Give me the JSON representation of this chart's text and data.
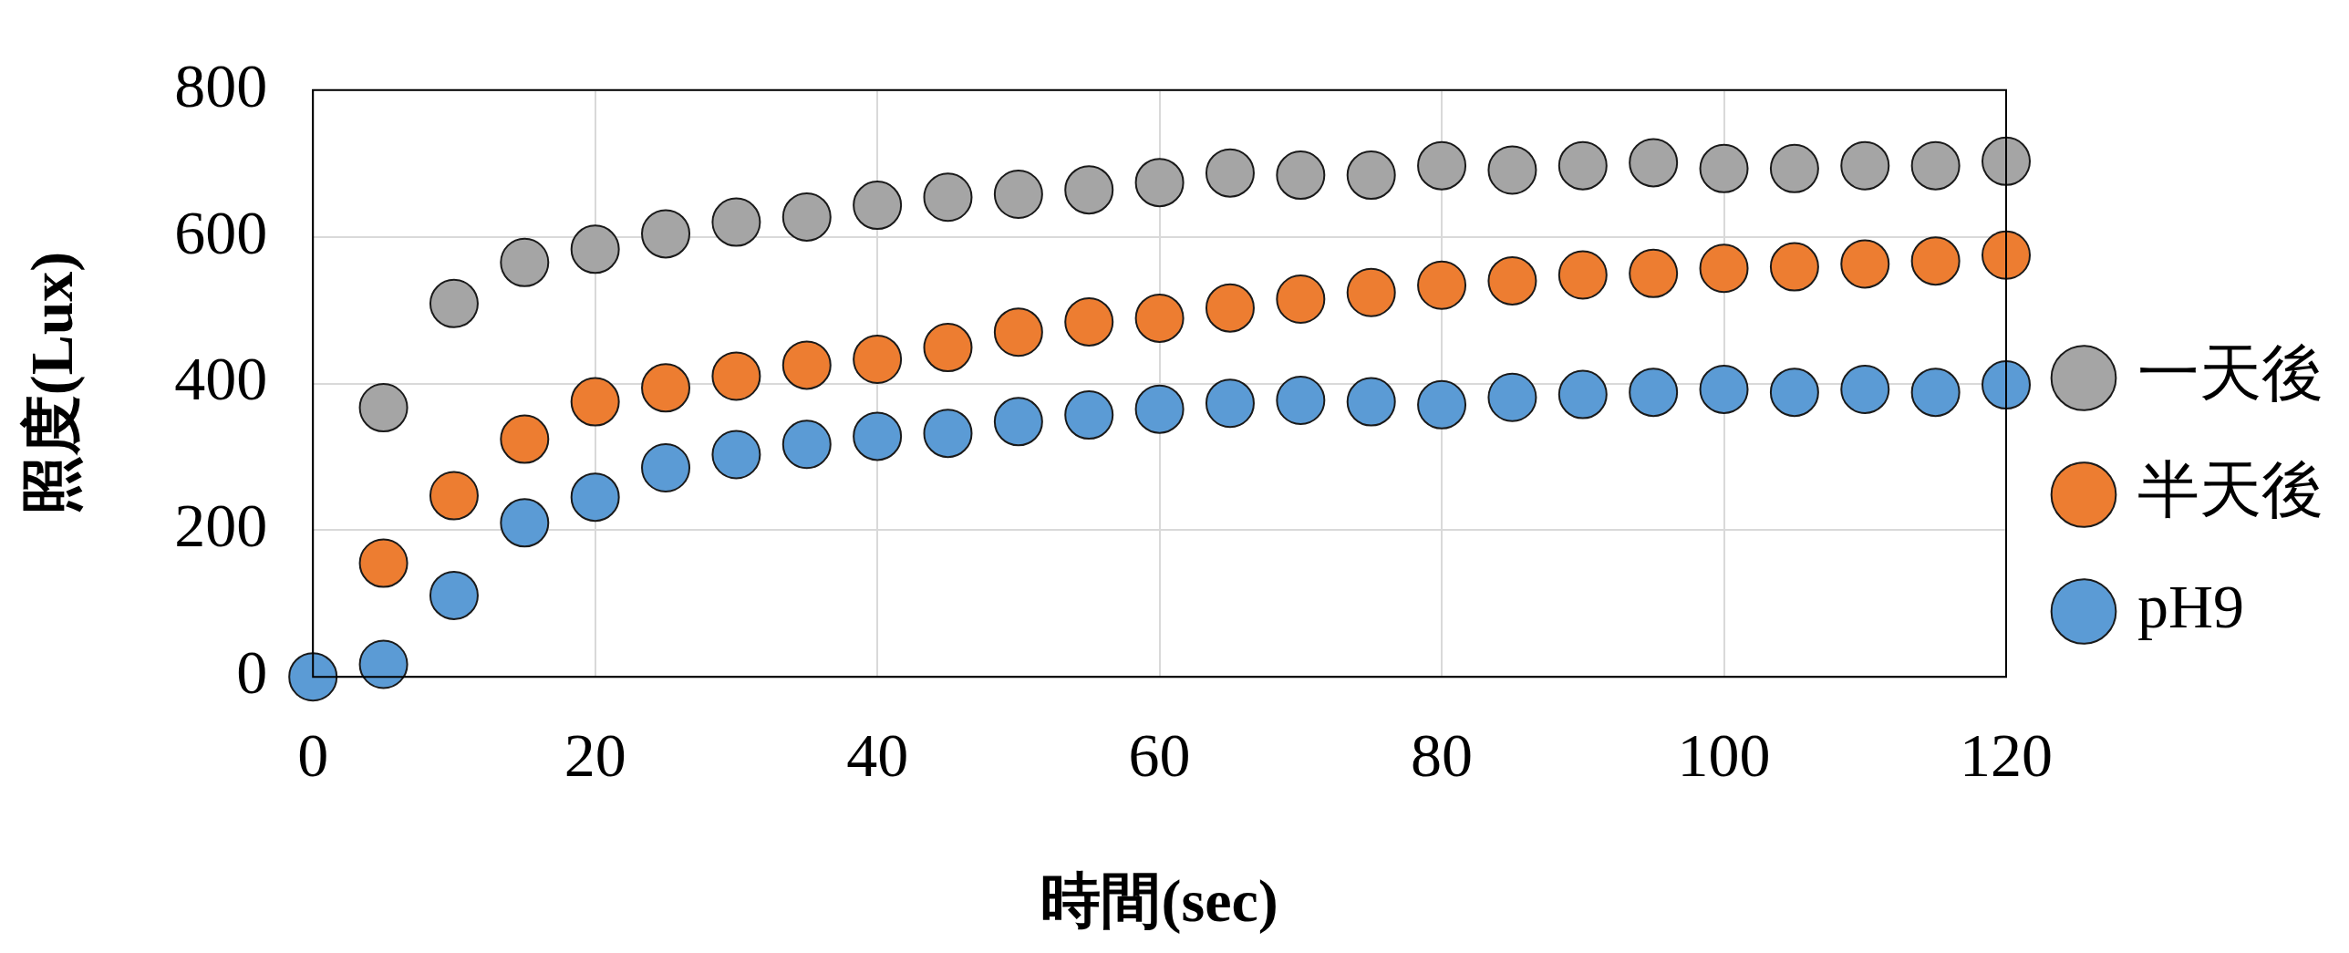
{
  "chart_data": {
    "type": "scatter",
    "xlabel": "時間(sec)",
    "ylabel": "照度(Lux)",
    "x": [
      0,
      5,
      10,
      15,
      20,
      25,
      30,
      35,
      40,
      45,
      50,
      55,
      60,
      65,
      70,
      75,
      80,
      85,
      90,
      95,
      100,
      105,
      110,
      115,
      120
    ],
    "series": [
      {
        "name": "一天後",
        "color": "#a5a5a5",
        "values": [
          null,
          367,
          509,
          565,
          583,
          604,
          620,
          627,
          643,
          654,
          658,
          664,
          674,
          687,
          684,
          684,
          697,
          691,
          697,
          701,
          693,
          693,
          697,
          697,
          703
        ]
      },
      {
        "name": "半天後",
        "color": "#ed7d31",
        "values": [
          null,
          155,
          247,
          324,
          375,
          394,
          410,
          425,
          433,
          449,
          470,
          484,
          489,
          503,
          515,
          524,
          534,
          540,
          548,
          550,
          557,
          559,
          563,
          567,
          575
        ]
      },
      {
        "name": "pH9",
        "color": "#5b9bd5",
        "values": [
          0,
          17,
          111,
          210,
          245,
          285,
          303,
          317,
          328,
          332,
          348,
          357,
          365,
          373,
          377,
          375,
          371,
          381,
          385,
          388,
          392,
          388,
          392,
          388,
          398
        ]
      }
    ],
    "xlim": [
      0,
      120
    ],
    "xticks": [
      0,
      20,
      40,
      60,
      80,
      100,
      120
    ],
    "ylim": [
      0,
      800
    ],
    "yticks": [
      0,
      200,
      400,
      600,
      800
    ],
    "grid": true,
    "legend": "right",
    "marker": "circle"
  }
}
